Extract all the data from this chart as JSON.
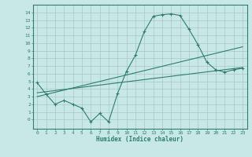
{
  "main_line_x": [
    0,
    1,
    2,
    3,
    4,
    5,
    6,
    7,
    8,
    9,
    10,
    11,
    12,
    13,
    14,
    15,
    16,
    17,
    18,
    19,
    20,
    21,
    22,
    23
  ],
  "main_line_y": [
    4.8,
    3.3,
    2.0,
    2.5,
    2.0,
    1.5,
    -0.3,
    0.8,
    -0.3,
    3.4,
    6.3,
    8.4,
    11.5,
    13.5,
    13.7,
    13.8,
    13.6,
    11.8,
    9.8,
    7.5,
    6.5,
    6.2,
    6.5,
    6.7
  ],
  "line2_x": [
    0,
    23
  ],
  "line2_y": [
    3.0,
    9.5
  ],
  "line3_x": [
    0,
    23
  ],
  "line3_y": [
    3.5,
    6.8
  ],
  "line_color": "#2e7d6e",
  "bg_color": "#c8e8e8",
  "grid_color": "#a8c8c8",
  "xlabel": "Humidex (Indice chaleur)",
  "xlim": [
    -0.5,
    23.5
  ],
  "ylim": [
    -1.2,
    15
  ],
  "yticks": [
    0,
    1,
    2,
    3,
    4,
    5,
    6,
    7,
    8,
    9,
    10,
    11,
    12,
    13,
    14
  ],
  "xticks": [
    0,
    1,
    2,
    3,
    4,
    5,
    6,
    7,
    8,
    9,
    10,
    11,
    12,
    13,
    14,
    15,
    16,
    17,
    18,
    19,
    20,
    21,
    22,
    23
  ]
}
